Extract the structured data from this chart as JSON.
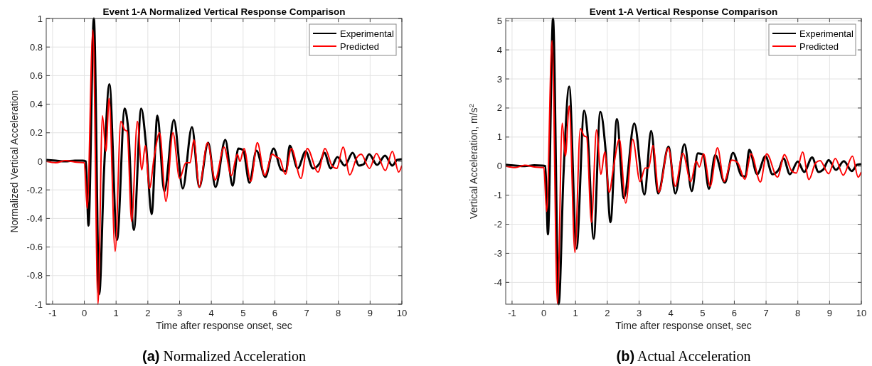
{
  "chart_data": [
    {
      "type": "line",
      "title": "Event 1-A Normalized Vertical Response Comparison",
      "xlabel": "Time after response onset, sec",
      "ylabel": "Normalized Vertical Acceleration",
      "annotations": [
        "(a) Normalized Acceleration"
      ],
      "xlim": [
        -1.2,
        10
      ],
      "xticks": [
        -1,
        0,
        1,
        2,
        3,
        4,
        5,
        6,
        7,
        8,
        9,
        10
      ],
      "ylim": [
        -1,
        1
      ],
      "yticks": [
        -1,
        -0.8,
        -0.6,
        -0.4,
        -0.2,
        0,
        0.2,
        0.4,
        0.6,
        0.8,
        1
      ],
      "grid": true,
      "legend": "top right",
      "line_style": "solid",
      "marker": "none",
      "series": [
        {
          "name": "Experimental",
          "color": "#000000",
          "x": [
            -1.2,
            -0.9,
            -0.6,
            -0.3,
            -0.05,
            0.05,
            0.13,
            0.3,
            0.47,
            0.62,
            0.79,
            1.03,
            1.27,
            1.38,
            1.56,
            1.79,
            1.95,
            2.12,
            2.3,
            2.52,
            2.82,
            3.1,
            3.39,
            3.62,
            3.9,
            4.13,
            4.44,
            4.67,
            4.85,
            5.0,
            5.2,
            5.42,
            5.7,
            5.96,
            6.2,
            6.35,
            6.47,
            6.72,
            6.97,
            7.2,
            7.42,
            7.56,
            7.76,
            7.97,
            8.2,
            8.45,
            8.65,
            8.8,
            8.97,
            9.22,
            9.47,
            9.7,
            9.85,
            10.0
          ],
          "values": [
            0.01,
            0.005,
            0.0,
            0.005,
            0.005,
            0,
            -0.45,
            1.0,
            -0.93,
            -0.07,
            0.54,
            -0.55,
            0.37,
            0.23,
            -0.48,
            0.37,
            0.1,
            -0.37,
            0.32,
            -0.21,
            0.29,
            -0.19,
            0.24,
            -0.18,
            0.13,
            -0.18,
            0.15,
            -0.17,
            0.09,
            0.08,
            -0.15,
            0.075,
            -0.11,
            0.09,
            -0.06,
            -0.07,
            0.11,
            -0.05,
            0.07,
            -0.05,
            -0.01,
            0.06,
            -0.05,
            0.03,
            -0.03,
            0.06,
            -0.03,
            -0.02,
            0.05,
            -0.025,
            0.04,
            -0.03,
            0.01,
            0.015
          ]
        },
        {
          "name": "Predicted",
          "color": "#ff0000",
          "x": [
            -1.2,
            -0.9,
            -0.6,
            -0.3,
            0.0,
            0.09,
            0.27,
            0.43,
            0.57,
            0.68,
            0.78,
            0.97,
            1.15,
            1.27,
            1.35,
            1.49,
            1.67,
            1.81,
            1.92,
            2.05,
            2.2,
            2.37,
            2.57,
            2.79,
            3.0,
            3.2,
            3.33,
            3.45,
            3.62,
            3.88,
            4.12,
            4.4,
            4.63,
            4.82,
            4.9,
            5.03,
            5.24,
            5.45,
            5.68,
            5.92,
            6.05,
            6.15,
            6.33,
            6.52,
            6.82,
            7.02,
            7.36,
            7.58,
            7.8,
            7.95,
            8.15,
            8.36,
            8.58,
            8.72,
            8.98,
            9.2,
            9.48,
            9.7,
            9.9,
            10.0
          ],
          "values": [
            0.0,
            -0.01,
            0.005,
            -0.005,
            -0.01,
            -0.33,
            0.92,
            -1.0,
            0.32,
            0.07,
            0.44,
            -0.63,
            0.28,
            0.22,
            0.21,
            -0.42,
            0.28,
            -0.06,
            0.11,
            -0.19,
            0.03,
            0.2,
            -0.28,
            0.2,
            -0.12,
            -0.01,
            -0.01,
            0.15,
            -0.18,
            0.13,
            -0.13,
            0.1,
            -0.1,
            0.05,
            0,
            0.09,
            -0.14,
            0.13,
            -0.1,
            0.05,
            0.03,
            0.02,
            -0.09,
            0.09,
            -0.12,
            0.09,
            -0.075,
            0.09,
            -0.03,
            -0.05,
            0.1,
            -0.095,
            0.025,
            0.05,
            -0.05,
            0.055,
            -0.065,
            0.07,
            -0.075,
            -0.03
          ]
        }
      ]
    },
    {
      "type": "line",
      "title": "Event 1-A Vertical Response Comparison",
      "xlabel": "Time after response onset, sec",
      "ylabel": "Vertical Acceleration, m/s$^{2}$",
      "annotations": [
        "(b) Actual Acceleration"
      ],
      "xlim": [
        -1.2,
        10
      ],
      "xticks": [
        -1,
        0,
        1,
        2,
        3,
        4,
        5,
        6,
        7,
        8,
        9,
        10
      ],
      "ylim": [
        -4.75,
        5.08
      ],
      "yticks": [
        -4,
        -3,
        -2,
        -1,
        0,
        1,
        2,
        3,
        4,
        5
      ],
      "grid": true,
      "legend": "top right",
      "line_style": "solid",
      "marker": "none",
      "series": [
        {
          "name": "Experimental",
          "color": "#000000",
          "x": [
            -1.2,
            -0.9,
            -0.6,
            -0.3,
            -0.05,
            0.05,
            0.13,
            0.29,
            0.47,
            0.62,
            0.8,
            1.03,
            1.27,
            1.38,
            1.57,
            1.78,
            1.95,
            2.1,
            2.3,
            2.52,
            2.85,
            3.17,
            3.38,
            3.6,
            3.93,
            4.14,
            4.43,
            4.66,
            4.85,
            5.02,
            5.2,
            5.4,
            5.7,
            5.96,
            6.22,
            6.35,
            6.47,
            6.72,
            6.98,
            7.2,
            7.4,
            7.55,
            7.75,
            8.0,
            8.2,
            8.45,
            8.65,
            8.8,
            8.97,
            9.2,
            9.45,
            9.7,
            9.87,
            10.0
          ],
          "values": [
            0.05,
            0.02,
            0.0,
            0.03,
            0.02,
            0,
            -2.35,
            5.08,
            -4.75,
            -0.3,
            2.74,
            -2.84,
            1.91,
            1.08,
            -2.5,
            1.87,
            0.5,
            -1.93,
            1.62,
            -1.1,
            1.47,
            -0.98,
            1.21,
            -0.94,
            0.67,
            -0.94,
            0.75,
            -0.86,
            0.44,
            0.4,
            -0.78,
            0.38,
            -0.57,
            0.46,
            -0.32,
            -0.36,
            0.56,
            -0.28,
            0.34,
            -0.28,
            -0.12,
            0.26,
            -0.28,
            0.16,
            -0.2,
            0.3,
            -0.2,
            -0.12,
            0.21,
            -0.13,
            0.17,
            -0.17,
            0.05,
            0.07
          ]
        },
        {
          "name": "Predicted",
          "color": "#ff0000",
          "x": [
            -1.2,
            -0.9,
            -0.6,
            -0.3,
            0.0,
            0.09,
            0.26,
            0.43,
            0.58,
            0.68,
            0.8,
            0.98,
            1.15,
            1.27,
            1.35,
            1.5,
            1.66,
            1.8,
            1.92,
            2.06,
            2.2,
            2.38,
            2.58,
            2.8,
            3.03,
            3.19,
            3.3,
            3.44,
            3.62,
            3.92,
            4.14,
            4.38,
            4.63,
            4.8,
            4.9,
            5.03,
            5.24,
            5.47,
            5.68,
            5.92,
            6.1,
            6.33,
            6.53,
            6.82,
            7.02,
            7.36,
            7.58,
            7.8,
            7.95,
            8.15,
            8.35,
            8.56,
            8.7,
            8.97,
            9.18,
            9.43,
            9.72,
            9.9,
            10.0
          ],
          "values": [
            0.0,
            -0.05,
            0.03,
            -0.03,
            -0.05,
            -1.56,
            4.32,
            -4.74,
            1.48,
            0.34,
            2.07,
            -2.97,
            1.29,
            1.04,
            1.0,
            -1.93,
            1.25,
            -0.28,
            0.49,
            -0.9,
            0,
            0.92,
            -1.27,
            0.92,
            -0.53,
            -0.07,
            -0.06,
            0.71,
            -0.9,
            0.63,
            -0.69,
            0.44,
            -0.53,
            0.17,
            -0.03,
            0.42,
            -0.69,
            0.63,
            -0.53,
            0.21,
            0.13,
            -0.45,
            0.42,
            -0.55,
            0.42,
            -0.38,
            0.4,
            -0.16,
            -0.24,
            0.48,
            -0.46,
            0.11,
            0.19,
            -0.26,
            0.26,
            -0.31,
            0.34,
            -0.38,
            -0.2
          ]
        }
      ]
    }
  ]
}
